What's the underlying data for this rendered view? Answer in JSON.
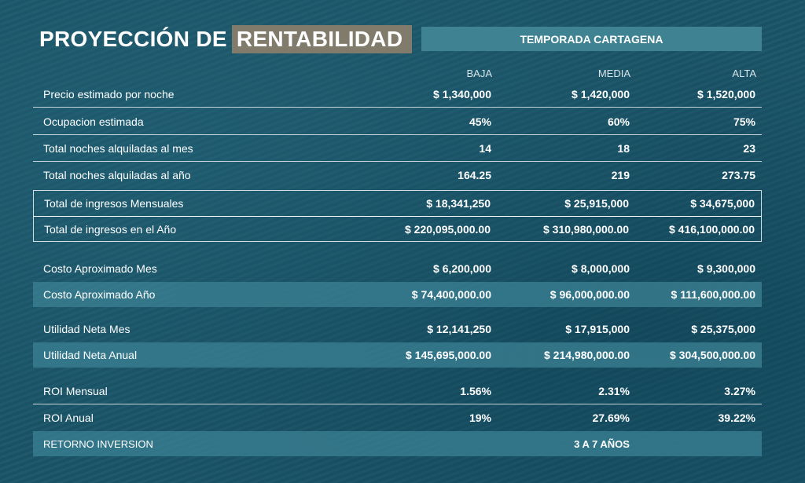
{
  "title": {
    "part1": "PROYECCIÓN DE",
    "part2": "RENTABILIDAD"
  },
  "season": "TEMPORADA CARTAGENA",
  "columns": [
    "BAJA",
    "MEDIA",
    "ALTA"
  ],
  "rows": [
    {
      "label": "Precio estimado por noche",
      "values": [
        "$ 1,340,000",
        "$ 1,420,000",
        "$ 1,520,000"
      ]
    },
    {
      "label": "Ocupacion estimada",
      "values": [
        "45%",
        "60%",
        "75%"
      ]
    },
    {
      "label": "Total noches alquiladas al mes",
      "values": [
        "14",
        "18",
        "23"
      ]
    },
    {
      "label": "Total noches alquiladas al año",
      "values": [
        "164.25",
        "219",
        "273.75"
      ]
    },
    {
      "label": "Total de ingresos Mensuales",
      "values": [
        "$ 18,341,250",
        "$ 25,915,000",
        "$ 34,675,000"
      ]
    },
    {
      "label": "Total de ingresos en el Año",
      "values": [
        "$ 220,095,000.00",
        "$ 310,980,000.00",
        "$ 416,100,000.00"
      ]
    },
    {
      "label": "Costo Aproximado Mes",
      "values": [
        "$ 6,200,000",
        "$ 8,000,000",
        "$ 9,300,000"
      ]
    },
    {
      "label": "Costo Aproximado Año",
      "values": [
        "$ 74,400,000.00",
        "$ 96,000,000.00",
        "$ 111,600,000.00"
      ]
    },
    {
      "label": "Utilidad Neta Mes",
      "values": [
        "$ 12,141,250",
        "$ 17,915,000",
        "$ 25,375,000"
      ]
    },
    {
      "label": "Utilidad Neta Anual",
      "values": [
        "$ 145,695,000.00",
        "$ 214,980,000.00",
        "$ 304,500,000.00"
      ]
    },
    {
      "label": "ROI Mensual",
      "values": [
        "1.56%",
        "2.31%",
        "3.27%"
      ]
    },
    {
      "label": "ROI Anual",
      "values": [
        "19%",
        "27.69%",
        "39.22%"
      ]
    }
  ],
  "return": {
    "label": "RETORNO INVERSION",
    "value": "3 A 7 AÑOS"
  },
  "colors": {
    "highlight": "#807b6b",
    "band": "#3f8393",
    "background": "#1b5468"
  }
}
